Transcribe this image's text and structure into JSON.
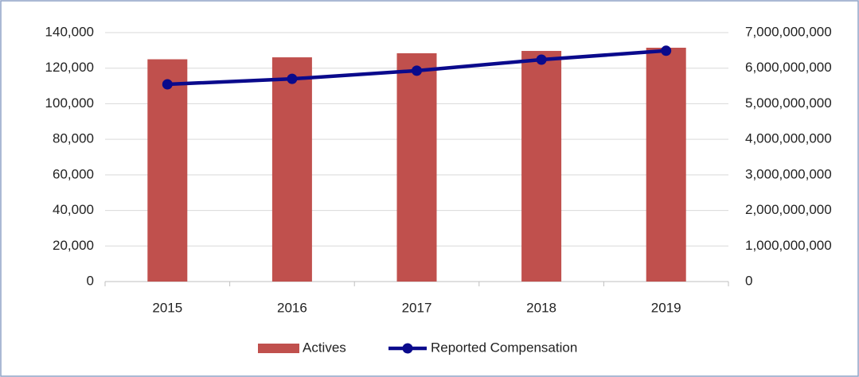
{
  "chart_data": {
    "type": "bar_line",
    "categories": [
      "2015",
      "2016",
      "2017",
      "2018",
      "2019"
    ],
    "series": [
      {
        "name": "Actives",
        "type": "bar",
        "color": "#c0504d",
        "values": [
          125000,
          126100,
          128400,
          129700,
          131500
        ]
      },
      {
        "name": "Reported Compensation",
        "type": "line",
        "axis": "y2",
        "color": "#0a0a8c",
        "values": [
          5546000000,
          5700000000,
          5930000000,
          6240000000,
          6490000000
        ]
      }
    ],
    "ylim": [
      0,
      140000
    ],
    "yticks": [
      0,
      {
        "value": 20000,
        "label": "20,000"
      },
      {
        "value": 40000,
        "label": "40,000"
      },
      {
        "value": 60000,
        "label": "60,000"
      },
      {
        "value": 80000,
        "label": "80,000"
      },
      {
        "value": 100000,
        "label": "100,000"
      },
      {
        "value": 120000,
        "label": "120,000"
      },
      {
        "value": 140000,
        "label": "140,000"
      }
    ],
    "y2lim": [
      0,
      7000000000
    ],
    "y2ticks": [
      0,
      {
        "value": 1000000000,
        "label": "1,000,000,000"
      },
      {
        "value": 2000000000,
        "label": "2,000,000,000"
      },
      {
        "value": 3000000000,
        "label": "3,000,000,000"
      },
      {
        "value": 4000000000,
        "label": "4,000,000,000"
      },
      {
        "value": 5000000000,
        "label": "5,000,000,000"
      },
      {
        "value": 6000000000,
        "label": "6,000,000,000"
      },
      {
        "value": 7000000000,
        "label": "7,000,000,000"
      }
    ],
    "grid": true,
    "legend": "bottom"
  }
}
